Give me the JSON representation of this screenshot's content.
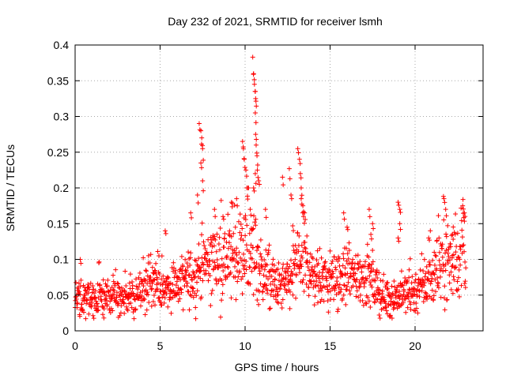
{
  "chart_data": {
    "type": "scatter",
    "title": "Day 232 of 2021, SRMTID for receiver lsmh",
    "xlabel": "GPS time / hours",
    "ylabel": "SRMTID / TECUs",
    "xlim": [
      0,
      24
    ],
    "ylim": [
      0,
      0.4
    ],
    "xticks": [
      0,
      5,
      10,
      15,
      20
    ],
    "xtick_labels": [
      "0",
      "5",
      "10",
      "15",
      "20"
    ],
    "yticks": [
      0,
      0.05,
      0.1,
      0.15,
      0.2,
      0.25,
      0.3,
      0.35,
      0.4
    ],
    "ytick_labels": [
      "0",
      "0.05",
      "0.1",
      "0.15",
      "0.2",
      "0.25",
      "0.3",
      "0.35",
      "0.4"
    ],
    "grid": true,
    "marker": "+",
    "color": "#ff0000",
    "series": [
      {
        "name": "SRMTID",
        "baseline": [
          [
            0.0,
            0.045
          ],
          [
            1.0,
            0.045
          ],
          [
            2.0,
            0.045
          ],
          [
            3.0,
            0.045
          ],
          [
            3.5,
            0.05
          ],
          [
            4.0,
            0.06
          ],
          [
            4.5,
            0.065
          ],
          [
            5.0,
            0.06
          ],
          [
            6.0,
            0.065
          ],
          [
            7.0,
            0.075
          ],
          [
            7.5,
            0.09
          ],
          [
            8.0,
            0.1
          ],
          [
            9.0,
            0.1
          ],
          [
            10.0,
            0.11
          ],
          [
            10.5,
            0.11
          ],
          [
            11.0,
            0.08
          ],
          [
            12.0,
            0.06
          ],
          [
            12.5,
            0.065
          ],
          [
            13.0,
            0.09
          ],
          [
            13.5,
            0.1
          ],
          [
            14.0,
            0.075
          ],
          [
            15.0,
            0.07
          ],
          [
            16.0,
            0.075
          ],
          [
            17.0,
            0.08
          ],
          [
            17.5,
            0.065
          ],
          [
            18.0,
            0.05
          ],
          [
            18.5,
            0.045
          ],
          [
            19.0,
            0.05
          ],
          [
            20.0,
            0.055
          ],
          [
            20.5,
            0.065
          ],
          [
            21.0,
            0.075
          ],
          [
            21.5,
            0.1
          ],
          [
            22.0,
            0.1
          ],
          [
            22.5,
            0.1
          ],
          [
            23.0,
            0.12
          ]
        ],
        "peaks": [
          [
            7.3,
            0.29
          ],
          [
            7.4,
            0.28
          ],
          [
            7.45,
            0.27
          ],
          [
            7.5,
            0.255
          ],
          [
            7.4,
            0.235
          ],
          [
            7.5,
            0.21
          ],
          [
            7.2,
            0.19
          ],
          [
            6.8,
            0.165
          ],
          [
            8.2,
            0.17
          ],
          [
            8.7,
            0.16
          ],
          [
            9.2,
            0.18
          ],
          [
            9.5,
            0.185
          ],
          [
            9.85,
            0.265
          ],
          [
            9.9,
            0.255
          ],
          [
            9.95,
            0.24
          ],
          [
            10.05,
            0.225
          ],
          [
            10.1,
            0.2
          ],
          [
            10.3,
            0.17
          ],
          [
            10.45,
            0.383
          ],
          [
            10.5,
            0.36
          ],
          [
            10.55,
            0.345
          ],
          [
            10.6,
            0.335
          ],
          [
            10.62,
            0.325
          ],
          [
            10.6,
            0.305
          ],
          [
            10.62,
            0.275
          ],
          [
            10.65,
            0.26
          ],
          [
            10.7,
            0.245
          ],
          [
            10.72,
            0.225
          ],
          [
            10.6,
            0.22
          ],
          [
            10.5,
            0.2
          ],
          [
            10.8,
            0.21
          ],
          [
            11.2,
            0.17
          ],
          [
            12.2,
            0.215
          ],
          [
            12.6,
            0.227
          ],
          [
            12.7,
            0.19
          ],
          [
            13.1,
            0.255
          ],
          [
            13.2,
            0.24
          ],
          [
            13.25,
            0.22
          ],
          [
            13.3,
            0.2
          ],
          [
            13.3,
            0.185
          ],
          [
            13.4,
            0.175
          ],
          [
            13.5,
            0.165
          ],
          [
            15.8,
            0.165
          ],
          [
            16.0,
            0.145
          ],
          [
            17.3,
            0.17
          ],
          [
            17.5,
            0.15
          ],
          [
            17.4,
            0.135
          ],
          [
            19.0,
            0.18
          ],
          [
            19.1,
            0.17
          ],
          [
            19.1,
            0.15
          ],
          [
            19.0,
            0.13
          ],
          [
            21.7,
            0.185
          ],
          [
            21.8,
            0.17
          ],
          [
            22.8,
            0.175
          ],
          [
            22.9,
            0.165
          ],
          [
            22.2,
            0.135
          ],
          [
            20.8,
            0.13
          ],
          [
            5.3,
            0.14
          ],
          [
            0.3,
            0.1
          ],
          [
            12.8,
            0.147
          ]
        ]
      }
    ]
  }
}
